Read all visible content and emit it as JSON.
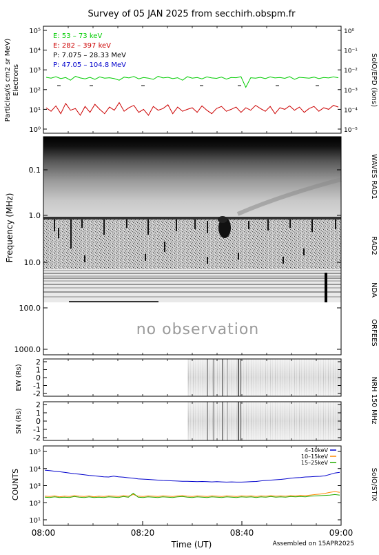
{
  "title": "Survey of 05 JAN 2025 from secchirh.obspm.fr",
  "footer": "Assembled on 15APR2025",
  "colors": {
    "green": "#00cc00",
    "red": "#cc0000",
    "black": "#000000",
    "blue": "#0000cc",
    "orange": "#ff8800",
    "stix_green": "#22aa00"
  },
  "epd": {
    "ylabel_left": "Particles/(s cm2 sr MeV)",
    "ylabel_left2": "Electrons",
    "ylabel_right": "SolO/EPD (ions)",
    "left_ticks": [
      "10⁵",
      "10⁴",
      "10³",
      "10²",
      "10¹",
      "10⁰"
    ],
    "right_ticks": [
      "10⁰",
      "10⁻¹",
      "10⁻²",
      "10⁻³",
      "10⁻⁴",
      "10⁻⁵"
    ],
    "legend": [
      {
        "label": "E: 53 – 73 keV",
        "color": "#00cc00"
      },
      {
        "label": "E: 282 – 397 keV",
        "color": "#cc0000"
      },
      {
        "label": "P: 7.075 – 28.33 MeV",
        "color": "#000000"
      },
      {
        "label": "P: 47.05 – 104.8 MeV",
        "color": "#0000cc"
      }
    ]
  },
  "spectrum": {
    "ylabel": "Frequency (MHz)",
    "ticks": [
      "0.1",
      "1.0",
      "10.0",
      "100.0",
      "1000.0"
    ],
    "labels_right": [
      "WAVES RAD1",
      "RAD2",
      "NDA",
      "ORFEES"
    ],
    "no_obs": "no observation"
  },
  "nrh": {
    "ew_label": "EW (Rs)",
    "sn_label": "SN (Rs)",
    "ticks": [
      "2",
      "1",
      "0",
      "-1",
      "-2"
    ],
    "label_right": "NRH 150 MHz"
  },
  "stix": {
    "ylabel": "COUNTS",
    "label_right": "SolO/STIX",
    "ticks": [
      "10⁵",
      "10⁴",
      "10³",
      "10²",
      "10¹"
    ],
    "legend": [
      {
        "label": "4–10keV",
        "color": "#0000cc"
      },
      {
        "label": "10–15keV",
        "color": "#ff8800"
      },
      {
        "label": "15–25keV",
        "color": "#22aa00"
      }
    ]
  },
  "time_axis": {
    "xlabel": "Time (UT)",
    "ticks": [
      "08:00",
      "08:20",
      "08:40",
      "09:00"
    ]
  },
  "chart_data": [
    {
      "type": "line",
      "name": "SolO/EPD",
      "title": "",
      "xlabel": "",
      "ylabel": "Particles/(s cm2 sr MeV)",
      "x_range": [
        "08:00",
        "09:00"
      ],
      "ylim": [
        1,
        100000
      ],
      "yscale": "log",
      "y2lim": [
        1e-05,
        1
      ],
      "y2scale": "log",
      "series": [
        {
          "name": "E: 53 – 73 keV",
          "color": "#00cc00",
          "values": [
            420,
            380,
            450,
            360,
            410,
            300,
            470,
            390,
            350,
            420,
            330,
            440,
            380,
            400,
            360,
            300,
            430,
            390,
            460,
            350,
            410,
            380,
            330,
            470,
            390,
            420,
            360,
            400,
            300,
            450,
            380,
            410,
            350,
            440,
            390,
            370,
            430,
            340,
            410,
            400,
            450,
            130,
            400,
            380,
            420,
            360,
            440,
            390,
            410,
            370,
            450,
            330,
            420,
            400,
            380,
            430,
            360,
            410,
            390,
            440,
            400
          ]
        },
        {
          "name": "E: 282 – 397 keV",
          "color": "#cc0000",
          "values": [
            12,
            8,
            15,
            6,
            20,
            9,
            11,
            5,
            14,
            7,
            18,
            10,
            6,
            13,
            9,
            22,
            8,
            12,
            16,
            7,
            10,
            5,
            14,
            9,
            11,
            17,
            6,
            13,
            8,
            10,
            12,
            7,
            15,
            9,
            6,
            11,
            14,
            8,
            10,
            13,
            7,
            12,
            9,
            16,
            11,
            8,
            14,
            6,
            12,
            10,
            15,
            9,
            13,
            7,
            11,
            14,
            8,
            12,
            10,
            16,
            13
          ]
        }
      ]
    },
    {
      "type": "heatmap",
      "name": "Radio spectrum",
      "ylabel": "Frequency (MHz)",
      "yscale": "log",
      "ylim": [
        0.02,
        1000
      ],
      "x_range": [
        "08:00",
        "09:00"
      ]
    },
    {
      "type": "heatmap",
      "name": "NRH 150 MHz EW",
      "ylabel": "EW (Rs)",
      "ylim": [
        -2.5,
        2.5
      ],
      "x_range": [
        "08:00",
        "09:00"
      ],
      "observation_start": "08:29"
    },
    {
      "type": "heatmap",
      "name": "NRH 150 MHz SN",
      "ylabel": "SN (Rs)",
      "ylim": [
        -2.5,
        2.5
      ],
      "x_range": [
        "08:00",
        "09:00"
      ],
      "observation_start": "08:29"
    },
    {
      "type": "line",
      "name": "SolO/STIX",
      "ylabel": "COUNTS",
      "xlabel": "Time (UT)",
      "x_range": [
        "08:00",
        "09:00"
      ],
      "ylim": [
        10,
        100000
      ],
      "yscale": "log",
      "series": [
        {
          "name": "4–10keV",
          "color": "#0000cc",
          "values": [
            8000,
            7500,
            7000,
            6500,
            6000,
            5500,
            5000,
            4700,
            4300,
            4000,
            3800,
            3500,
            3300,
            3200,
            3600,
            3300,
            3100,
            2900,
            2700,
            2500,
            2400,
            2300,
            2200,
            2100,
            2000,
            1950,
            1900,
            1850,
            1800,
            1800,
            1750,
            1700,
            1750,
            1700,
            1650,
            1700,
            1650,
            1600,
            1650,
            1600,
            1600,
            1650,
            1700,
            1750,
            1900,
            2000,
            2100,
            2200,
            2300,
            2500,
            2700,
            2900,
            3000,
            3200,
            3300,
            3400,
            3500,
            3800,
            4500,
            5500,
            6000
          ]
        },
        {
          "name": "10–15keV",
          "color": "#ff8800",
          "values": [
            240,
            230,
            250,
            220,
            240,
            230,
            260,
            240,
            230,
            250,
            220,
            240,
            230,
            250,
            240,
            230,
            260,
            240,
            300,
            240,
            230,
            250,
            240,
            230,
            250,
            240,
            230,
            250,
            260,
            240,
            230,
            250,
            240,
            230,
            250,
            240,
            230,
            250,
            240,
            230,
            250,
            240,
            250,
            230,
            250,
            240,
            260,
            240,
            250,
            240,
            260,
            250,
            270,
            260,
            280,
            300,
            320,
            350,
            400,
            450,
            400
          ]
        },
        {
          "name": "15–25keV",
          "color": "#22aa00",
          "values": [
            210,
            200,
            220,
            200,
            210,
            200,
            230,
            210,
            200,
            220,
            200,
            210,
            200,
            220,
            210,
            200,
            230,
            210,
            360,
            210,
            200,
            220,
            210,
            200,
            220,
            210,
            200,
            220,
            230,
            210,
            200,
            220,
            210,
            200,
            220,
            210,
            200,
            220,
            210,
            200,
            220,
            210,
            220,
            200,
            220,
            210,
            230,
            210,
            220,
            210,
            230,
            220,
            230,
            220,
            240,
            250,
            260,
            270,
            280,
            300,
            280
          ]
        }
      ]
    }
  ]
}
